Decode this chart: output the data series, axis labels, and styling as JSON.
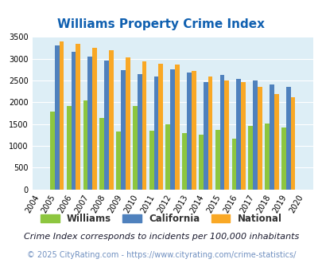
{
  "title": "Williams Property Crime Index",
  "years": [
    2004,
    2005,
    2006,
    2007,
    2008,
    2009,
    2010,
    2011,
    2012,
    2013,
    2014,
    2015,
    2016,
    2017,
    2018,
    2019,
    2020
  ],
  "williams": [
    0,
    1780,
    1920,
    2040,
    1640,
    1330,
    1920,
    1340,
    1490,
    1290,
    1250,
    1360,
    1170,
    1450,
    1510,
    1410,
    0
  ],
  "california": [
    0,
    3310,
    3160,
    3040,
    2950,
    2730,
    2640,
    2590,
    2760,
    2680,
    2460,
    2620,
    2540,
    2490,
    2400,
    2350,
    0
  ],
  "national": [
    0,
    3390,
    3330,
    3250,
    3190,
    3030,
    2940,
    2890,
    2860,
    2710,
    2590,
    2490,
    2460,
    2360,
    2190,
    2110,
    0
  ],
  "bar_width": 0.28,
  "colors": {
    "williams": "#8dc63f",
    "california": "#4f81bd",
    "national": "#f9a825"
  },
  "ylim": [
    0,
    3500
  ],
  "yticks": [
    0,
    500,
    1000,
    1500,
    2000,
    2500,
    3000,
    3500
  ],
  "bg_color": "#ddeef6",
  "grid_color": "#ffffff",
  "title_color": "#1060b0",
  "legend_labels": [
    "Williams",
    "California",
    "National"
  ],
  "footnote1": "Crime Index corresponds to incidents per 100,000 inhabitants",
  "footnote2": "© 2025 CityRating.com - https://www.cityrating.com/crime-statistics/",
  "title_fontsize": 11,
  "legend_fontsize": 8.5,
  "tick_fontsize": 7,
  "footnote1_fontsize": 8,
  "footnote2_fontsize": 7
}
